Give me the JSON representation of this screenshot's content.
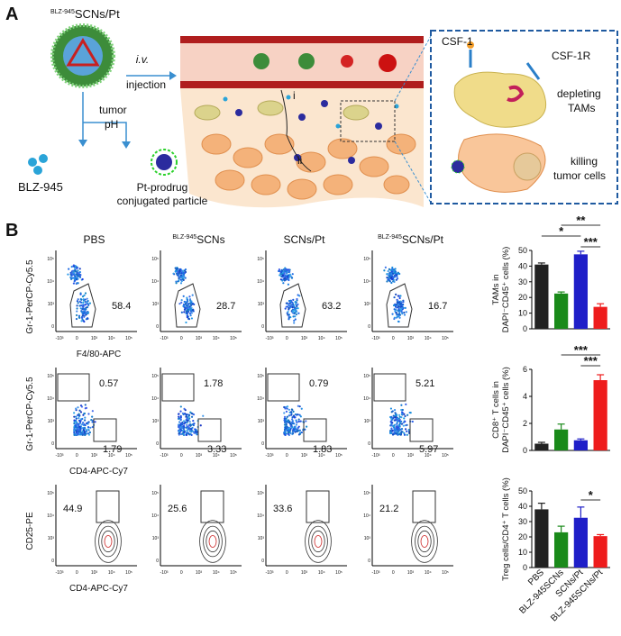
{
  "panel_a": {
    "label": "A",
    "particle": {
      "sup": "BLZ-945",
      "name": "SCNs/Pt"
    },
    "route": "i.v.",
    "injection": "injection",
    "tumor": "tumor",
    "ph": "pH",
    "drug": "BLZ-945",
    "prodrug_1": "Pt-prodrug",
    "prodrug_2": "conjugated particle",
    "path_i": "i",
    "path_ii": "ii",
    "csf1": "CSF-1",
    "csf1r": "CSF-1R",
    "deplete_1": "depleting",
    "deplete_2": "TAMs",
    "kill_1": "killing",
    "kill_2": "tumor cells"
  },
  "panel_b": {
    "label": "B",
    "columns": [
      {
        "name": "PBS"
      },
      {
        "sup": "BLZ-945",
        "name": "SCNs"
      },
      {
        "name": "SCNs/Pt"
      },
      {
        "sup": "BLZ-945",
        "name": "SCNs/Pt"
      }
    ],
    "flow_ticks": [
      "-10³",
      "0",
      "10³",
      "10⁴",
      "10⁵"
    ],
    "rows": [
      {
        "y_label": "Gr-1-PerCP-Cy5.5",
        "x_label": "F4/80-APC",
        "gates": [
          [
            58.4
          ],
          [
            28.7
          ],
          [
            63.2
          ],
          [
            16.7
          ]
        ]
      },
      {
        "y_label": "Gr-1-PerCP-Cy5.5",
        "x_label": "CD4-APC-Cy7",
        "gates": [
          [
            0.57,
            1.79
          ],
          [
            1.78,
            3.33
          ],
          [
            0.79,
            1.83
          ],
          [
            5.21,
            5.97
          ]
        ]
      },
      {
        "y_label": "CD25-PE",
        "x_label": "CD4-APC-Cy7",
        "gates": [
          [
            44.9
          ],
          [
            25.6
          ],
          [
            33.6
          ],
          [
            21.2
          ]
        ]
      }
    ]
  },
  "chart_data": [
    {
      "type": "bar",
      "y_label": [
        "TAMs in",
        "DAPI⁻CD45⁺ cells (%)"
      ],
      "categories": [
        null,
        null,
        null,
        null
      ],
      "values": [
        41,
        22.5,
        47.5,
        14
      ],
      "errors": [
        1,
        1,
        2,
        2
      ],
      "colors": [
        "#222222",
        "#1a8a1a",
        "#1f1fc8",
        "#ee1c1c"
      ],
      "ylim": [
        0,
        50
      ],
      "yticks": [
        0,
        10,
        20,
        30,
        40,
        50
      ],
      "annotations": [
        "**",
        "*",
        "***"
      ]
    },
    {
      "type": "bar",
      "y_label": [
        "CD8⁺ T cells in",
        "DAPI⁻CD45⁺ cells (%)"
      ],
      "categories": [
        null,
        null,
        null,
        null
      ],
      "values": [
        0.5,
        1.55,
        0.75,
        5.2
      ],
      "errors": [
        0.1,
        0.4,
        0.1,
        0.4
      ],
      "colors": [
        "#222222",
        "#1a8a1a",
        "#1f1fc8",
        "#ee1c1c"
      ],
      "ylim": [
        0,
        6
      ],
      "yticks": [
        0,
        2,
        4,
        6
      ],
      "annotations": [
        "***",
        "***"
      ]
    },
    {
      "type": "bar",
      "y_label": [
        "Treg cells/CD4⁺ T cells (%)"
      ],
      "categories": [
        "PBS",
        "BLZ-945SCNs",
        "SCNs/Pt",
        "BLZ-945SCNs/Pt"
      ],
      "values": [
        38,
        23,
        32.5,
        20.5
      ],
      "errors": [
        4,
        4,
        7,
        1
      ],
      "colors": [
        "#222222",
        "#1a8a1a",
        "#1f1fc8",
        "#ee1c1c"
      ],
      "ylim": [
        0,
        50
      ],
      "yticks": [
        0,
        10,
        20,
        30,
        40,
        50
      ],
      "annotations": [
        "*"
      ]
    }
  ]
}
